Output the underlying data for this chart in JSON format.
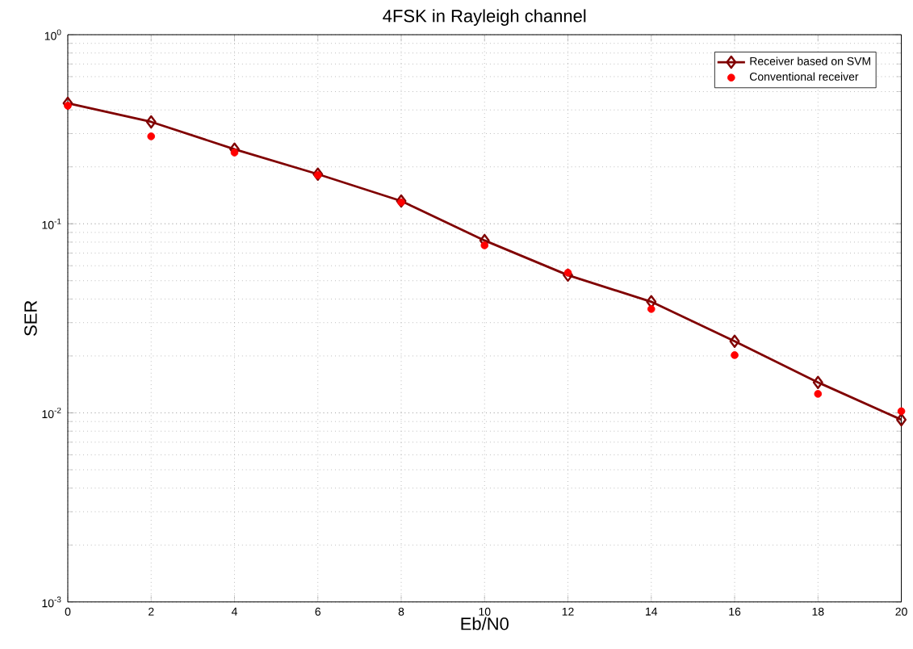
{
  "chart_data": {
    "type": "line",
    "title": "4FSK in Rayleigh channel",
    "xlabel": "Eb/N0",
    "ylabel": "SER",
    "log": "y",
    "grid": true,
    "legend": "top right",
    "xlim": [
      0,
      20
    ],
    "xticks": [
      0,
      2,
      4,
      6,
      8,
      10,
      12,
      14,
      16,
      18,
      20
    ],
    "ylim": [
      0.001,
      1
    ],
    "yticks": [
      {
        "value": 0.001,
        "label": "10$^{-3}$"
      },
      {
        "value": 0.01,
        "label": "10$^{-2}$"
      },
      {
        "value": 0.1,
        "label": "10$^{-1}$"
      },
      {
        "value": 1,
        "label": "10$^{0}$"
      }
    ],
    "x": [
      0,
      2,
      4,
      6,
      8,
      10,
      12,
      14,
      16,
      18,
      20
    ],
    "series": [
      {
        "name": "Receiver based on SVM",
        "marker": "diamond",
        "color": "#800000",
        "values": [
          0.434,
          0.346,
          0.248,
          0.183,
          0.132,
          0.0816,
          0.0535,
          0.0387,
          0.0239,
          0.0145,
          0.0092
        ]
      },
      {
        "name": "Conventional receiver",
        "type": "scatter",
        "marker": "circle",
        "color": "#ff0000",
        "values": [
          0.421,
          0.29,
          0.238,
          0.181,
          0.13,
          0.0769,
          0.0551,
          0.0354,
          0.0202,
          0.0126,
          0.0102
        ]
      }
    ]
  }
}
